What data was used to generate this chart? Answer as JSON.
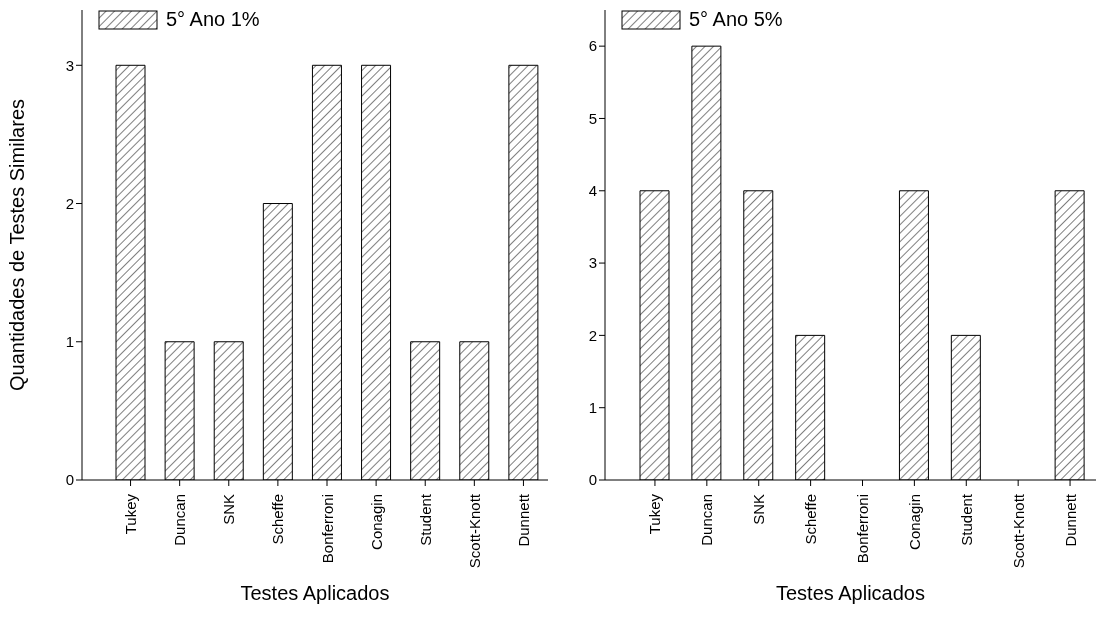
{
  "chart_data": [
    {
      "type": "bar",
      "ylabel": "Quantidades de Testes Similares",
      "xlabel": "Testes Aplicados",
      "categories": [
        "Tukey",
        "Duncan",
        "SNK",
        "Scheffe",
        "Bonferroni",
        "Conagin",
        "Student",
        "Scott-Knott",
        "Dunnett"
      ],
      "series": [
        {
          "name": "5° Ano 1%",
          "color": "#000000",
          "values": [
            3,
            1,
            1,
            2,
            3,
            3,
            1,
            1,
            3
          ]
        }
      ],
      "ylim": [
        0,
        3.4
      ],
      "yticks": [
        0,
        1,
        2,
        3
      ],
      "grid": false,
      "legend": "top left"
    },
    {
      "type": "bar",
      "xlabel": "Testes Aplicados",
      "categories": [
        "Tukey",
        "Duncan",
        "SNK",
        "Scheffe",
        "Bonferroni",
        "Conagin",
        "Student",
        "Scott-Knott",
        "Dunnett"
      ],
      "series": [
        {
          "name": "5° Ano 5%",
          "color": "#000000",
          "values": [
            4,
            6,
            4,
            2,
            0,
            4,
            2,
            0,
            4
          ]
        }
      ],
      "ylim": [
        0,
        6.5
      ],
      "yticks": [
        0,
        1,
        2,
        3,
        4,
        5,
        6
      ],
      "grid": false,
      "legend": "top left"
    }
  ]
}
